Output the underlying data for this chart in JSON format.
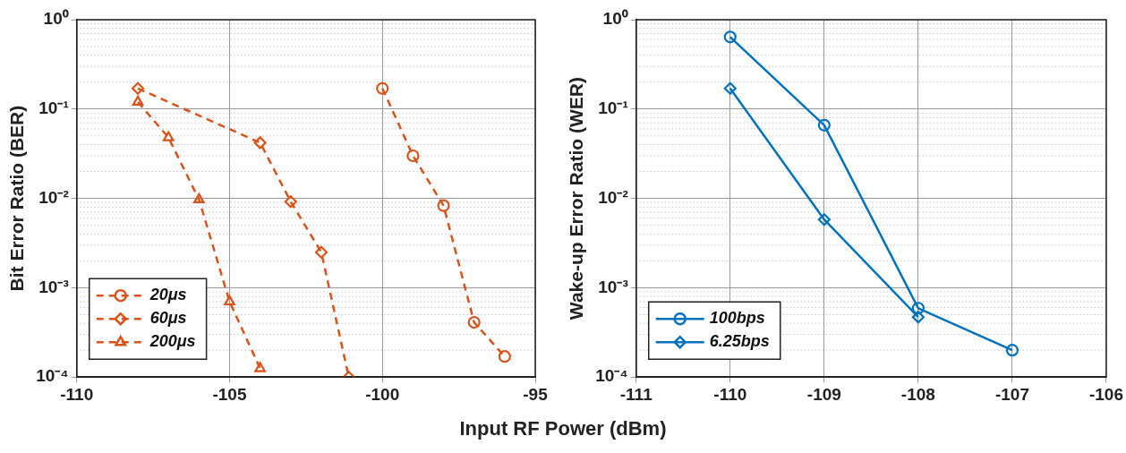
{
  "chart_data": [
    {
      "type": "line",
      "ylabel": "Bit Error Ratio (BER)",
      "xlabel": "Input RF Power (dBm)",
      "log": "y",
      "grid": true,
      "legend": "bottom left",
      "line_style": "dashed",
      "xlim": [
        -110,
        -95
      ],
      "xticks": [
        -110,
        -105,
        -100,
        -95
      ],
      "ylim": [
        0.0001,
        1
      ],
      "yticks": [
        {
          "value": 0.0001,
          "label": "10⁻⁴"
        },
        {
          "value": 0.001,
          "label": "10⁻³"
        },
        {
          "value": 0.01,
          "label": "10⁻²"
        },
        {
          "value": 0.1,
          "label": "10⁻¹"
        },
        {
          "value": 1,
          "label": "10⁰"
        }
      ],
      "series": [
        {
          "name": "20μs",
          "color": "#d95319",
          "marker": "circle",
          "x": [
            -100,
            -99,
            -98,
            -97,
            -96
          ],
          "values": [
            0.17,
            0.03,
            0.0083,
            0.00041,
            0.00017
          ]
        },
        {
          "name": "60μs",
          "color": "#d95319",
          "marker": "diamond",
          "x": [
            -108,
            -104,
            -103,
            -102,
            -101.1
          ],
          "values": [
            0.17,
            0.042,
            0.0092,
            0.0025,
            0.0001
          ]
        },
        {
          "name": "200μs",
          "color": "#d95319",
          "marker": "triangle",
          "x": [
            -108,
            -107,
            -106,
            -105,
            -104
          ],
          "values": [
            0.12,
            0.048,
            0.0097,
            0.0007,
            0.000125
          ]
        }
      ]
    },
    {
      "type": "line",
      "ylabel": "Wake-up Error Ratio (WER)",
      "log": "y",
      "grid": true,
      "legend": "bottom left",
      "line_style": "solid",
      "xlim": [
        -111,
        -106
      ],
      "xticks": [
        -111,
        -110,
        -109,
        -108,
        -107,
        -106
      ],
      "ylim": [
        0.0001,
        1
      ],
      "yticks": [
        {
          "value": 0.0001,
          "label": "10⁻⁴"
        },
        {
          "value": 0.001,
          "label": "10⁻³"
        },
        {
          "value": 0.01,
          "label": "10⁻²"
        },
        {
          "value": 0.1,
          "label": "10⁻¹"
        },
        {
          "value": 1,
          "label": "10⁰"
        }
      ],
      "series": [
        {
          "name": "100bps",
          "color": "#0072bd",
          "marker": "circle",
          "x": [
            -110,
            -109,
            -108,
            -107
          ],
          "values": [
            0.64,
            0.066,
            0.00059,
            0.0002
          ]
        },
        {
          "name": "6.25bps",
          "color": "#0072bd",
          "marker": "diamond",
          "x": [
            -110,
            -109,
            -108
          ],
          "values": [
            0.17,
            0.0058,
            0.00047
          ]
        }
      ]
    }
  ]
}
